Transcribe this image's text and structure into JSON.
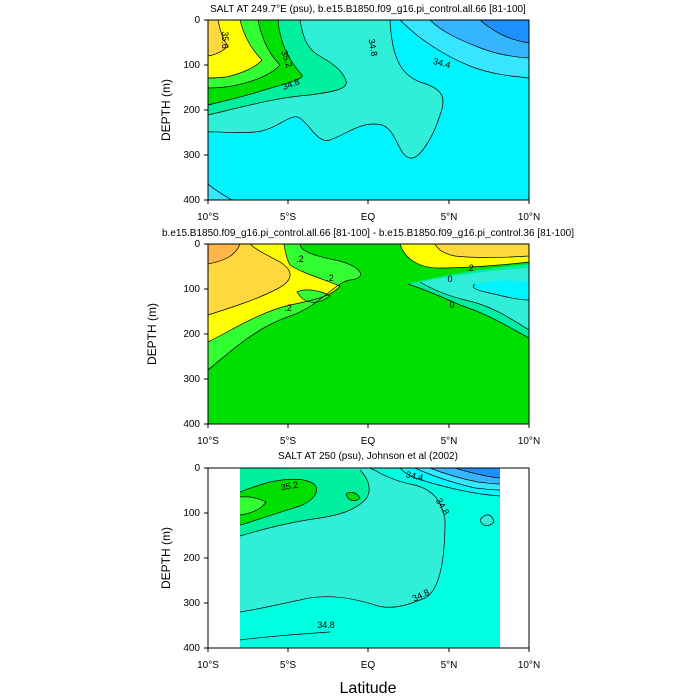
{
  "figure": {
    "xlabel": "Latitude",
    "colors": {
      "blue_dark": "#1e90ff",
      "blue": "#36b5ff",
      "cyan": "#00fbff",
      "cyan_light": "#00fff0",
      "aqua": "#2fefd8",
      "teal": "#00f0c0",
      "mint": "#00f0a0",
      "green": "#00e000",
      "lime": "#32ff32",
      "yellow": "#ffff00",
      "gold": "#ffd83d",
      "orange": "#ffb547"
    }
  },
  "chart_data": [
    {
      "type": "contour",
      "title": "SALT AT 249.7°E (psu), b.e15.B1850.f09_g16.pi_control.all.66 [81-100]",
      "ylabel": "DEPTH (m)",
      "xlim": [
        -10,
        10
      ],
      "ylim": [
        400,
        0
      ],
      "xticks": [
        "10°S",
        "5°S",
        "EQ",
        "5°N",
        "10°N"
      ],
      "yticks": [
        "0",
        "100",
        "200",
        "300",
        "400"
      ],
      "contour_labels": [
        "35.6",
        "35.2",
        "34.8",
        "34.8",
        "34.4"
      ]
    },
    {
      "type": "contour",
      "title": "b.e15.B1850.f09_g16.pi_control.all.66 [81-100] - b.e15.B1850.f09_g16.pi_control.36 [81-100]",
      "ylabel": "DEPTH (m)",
      "xlim": [
        -10,
        10
      ],
      "ylim": [
        400,
        0
      ],
      "xticks": [
        "10°S",
        "5°S",
        "EQ",
        "5°N",
        "10°N"
      ],
      "yticks": [
        "0",
        "100",
        "200",
        "300",
        "400"
      ],
      "contour_labels": [
        ".2",
        ".2",
        ".2",
        ".2",
        "0",
        "0"
      ]
    },
    {
      "type": "contour",
      "title": "SALT AT 250 (psu), Johnson et al (2002)",
      "ylabel": "DEPTH (m)",
      "xlim": [
        -10,
        10
      ],
      "ylim": [
        400,
        0
      ],
      "xticks": [
        "10°S",
        "5°S",
        "EQ",
        "5°N",
        "10°N"
      ],
      "yticks": [
        "0",
        "100",
        "200",
        "300",
        "400"
      ],
      "contour_labels": [
        "35.2",
        "34.4",
        "34.8",
        "34.8",
        "34.8"
      ]
    }
  ]
}
